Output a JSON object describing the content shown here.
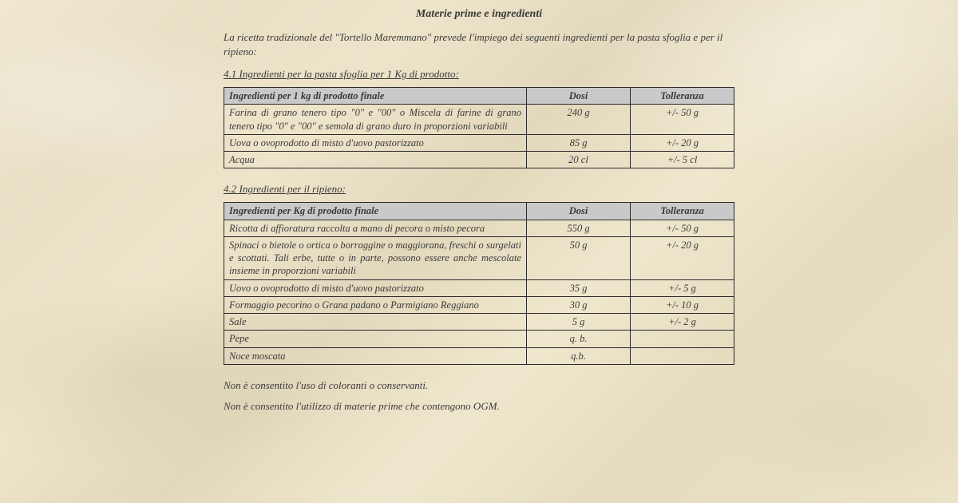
{
  "title": "Materie prime e ingredienti",
  "intro_a": "La ricetta tradizionale del ",
  "intro_em": "\"Tortello Maremmano\"",
  "intro_b": " prevede l'impiego dei seguenti ingredienti per la pasta sfoglia e per il ripieno:",
  "sec1": "4.1 Ingredienti per la pasta sfoglia per 1 Kg di prodotto:",
  "sec2": "4.2 Ingredienti per il ripieno:",
  "t1": {
    "h1": "Ingredienti per 1 kg di prodotto finale",
    "h2": "Dosi",
    "h3": "Tolleranza",
    "r": [
      {
        "ing": "Farina di grano tenero tipo \"0\" e \"00\" o Miscela di farine di grano tenero tipo \"0\" e \"00\" e semola di grano duro in proporzioni variabili",
        "d": "240 g",
        "t": "+/- 50 g"
      },
      {
        "ing": "Uova o ovoprodotto di misto d'uovo pastorizzato",
        "d": "85 g",
        "t": "+/- 20 g"
      },
      {
        "ing": "Acqua",
        "d": "20 cl",
        "t": "+/- 5 cl"
      }
    ]
  },
  "t2": {
    "h1": "Ingredienti per Kg di prodotto finale",
    "h2": "Dosi",
    "h3": "Tolleranza",
    "r": [
      {
        "ing": "Ricotta di affioratura raccolta a mano di pecora o misto pecora",
        "d": "550 g",
        "t": "+/- 50 g"
      },
      {
        "ing": "Spinaci o bietole o ortica o borraggine o maggiorana, freschi o surgelati e scottati. Tali erbe, tutte o in parte, possono essere anche mescolate insieme in proporzioni variabili",
        "d": "50 g",
        "t": "+/- 20 g"
      },
      {
        "ing": "Uovo o ovoprodotto di misto d'uovo pastorizzato",
        "d": "35 g",
        "t": "+/- 5 g"
      },
      {
        "ing": "Formaggio pecorino o Grana padano o Parmigiano Reggiano",
        "d": "30 g",
        "t": "+/- 10 g"
      },
      {
        "ing": "Sale",
        "d": "5 g",
        "t": "+/- 2 g"
      },
      {
        "ing": "Pepe",
        "d": "q. b.",
        "t": ""
      },
      {
        "ing": "Noce moscata",
        "d": "q.b.",
        "t": ""
      }
    ]
  },
  "foot1": "Non è consentito l'uso di coloranti o conservanti.",
  "foot2": "Non è consentito l'utilizzo di materie prime che contengono OGM."
}
